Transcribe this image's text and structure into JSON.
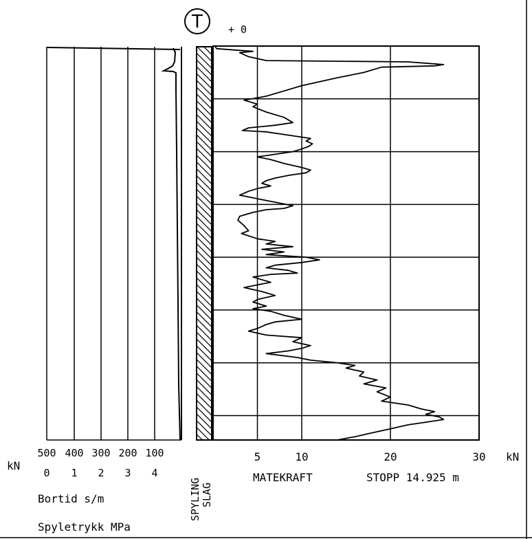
{
  "marker": {
    "symbol": "T",
    "offset": "+ 0"
  },
  "left_panel": {
    "unit": "kN",
    "kn_ticks": [
      "500",
      "400",
      "300",
      "200",
      "100"
    ],
    "mpa_ticks": [
      "0",
      "1",
      "2",
      "3",
      "4"
    ],
    "label_bortid": "Bortid s/m",
    "label_spyletrykk": "Spyletrykk MPa"
  },
  "strip": {
    "label_spyling": "SPYLING",
    "label_slag": "SLAG"
  },
  "chart_data": {
    "type": "line",
    "xlabel": "MATEKRAFT",
    "x_unit": "kN",
    "xlim": [
      0,
      30
    ],
    "x_ticks": [
      "5",
      "10",
      "20",
      "30"
    ],
    "stop_label": "STOPP 14.925 m",
    "grid": true,
    "depth_range": [
      0,
      14.925
    ],
    "series": [
      {
        "points": [
          [
            0.0,
            0.2
          ],
          [
            0.1,
            0.4
          ],
          [
            0.2,
            4.5
          ],
          [
            0.25,
            3.0
          ],
          [
            0.4,
            4.0
          ],
          [
            0.55,
            6.0
          ],
          [
            0.6,
            22.0
          ],
          [
            0.7,
            26.0
          ],
          [
            0.75,
            25.0
          ],
          [
            0.8,
            19.0
          ],
          [
            1.0,
            17.0
          ],
          [
            1.2,
            14.0
          ],
          [
            1.5,
            10.0
          ],
          [
            1.7,
            8.0
          ],
          [
            1.9,
            6.0
          ],
          [
            2.05,
            3.5
          ],
          [
            2.2,
            5.0
          ],
          [
            2.3,
            4.5
          ],
          [
            2.5,
            6.0
          ],
          [
            2.7,
            8.0
          ],
          [
            2.9,
            9.0
          ],
          [
            3.0,
            7.0
          ],
          [
            3.1,
            4.0
          ],
          [
            3.2,
            3.3
          ],
          [
            3.25,
            6.0
          ],
          [
            3.35,
            8.0
          ],
          [
            3.5,
            11.0
          ],
          [
            3.6,
            10.5
          ],
          [
            3.7,
            11.2
          ],
          [
            3.8,
            10.8
          ],
          [
            3.9,
            10.0
          ],
          [
            4.0,
            9.0
          ],
          [
            4.1,
            7.0
          ],
          [
            4.2,
            5.0
          ],
          [
            4.3,
            6.5
          ],
          [
            4.45,
            8.0
          ],
          [
            4.6,
            10.0
          ],
          [
            4.7,
            11.0
          ],
          [
            4.8,
            10.5
          ],
          [
            4.9,
            8.5
          ],
          [
            5.0,
            7.0
          ],
          [
            5.1,
            6.0
          ],
          [
            5.2,
            5.5
          ],
          [
            5.3,
            6.5
          ],
          [
            5.4,
            5.0
          ],
          [
            5.5,
            4.0
          ],
          [
            5.65,
            3.0
          ],
          [
            5.75,
            4.5
          ],
          [
            5.85,
            6.0
          ],
          [
            5.95,
            7.5
          ],
          [
            6.05,
            9.0
          ],
          [
            6.15,
            8.0
          ],
          [
            6.2,
            6.0
          ],
          [
            6.3,
            4.5
          ],
          [
            6.45,
            3.0
          ],
          [
            6.6,
            2.8
          ],
          [
            6.8,
            3.5
          ],
          [
            7.0,
            4.0
          ],
          [
            7.1,
            3.2
          ],
          [
            7.3,
            5.0
          ],
          [
            7.4,
            7.0
          ],
          [
            7.5,
            6.0
          ],
          [
            7.6,
            9.0
          ],
          [
            7.7,
            5.5
          ],
          [
            7.8,
            8.0
          ],
          [
            7.9,
            6.0
          ],
          [
            8.0,
            10.5
          ],
          [
            8.1,
            12.0
          ],
          [
            8.2,
            10.0
          ],
          [
            8.3,
            7.0
          ],
          [
            8.4,
            6.0
          ],
          [
            8.5,
            8.5
          ],
          [
            8.6,
            9.5
          ],
          [
            8.65,
            6.5
          ],
          [
            8.75,
            4.5
          ],
          [
            8.85,
            5.5
          ],
          [
            8.95,
            6.5
          ],
          [
            9.05,
            5.0
          ],
          [
            9.15,
            3.5
          ],
          [
            9.3,
            5.5
          ],
          [
            9.45,
            7.0
          ],
          [
            9.6,
            5.0
          ],
          [
            9.7,
            4.5
          ],
          [
            9.85,
            6.0
          ],
          [
            9.95,
            4.5
          ],
          [
            10.05,
            6.5
          ],
          [
            10.2,
            8.0
          ],
          [
            10.35,
            10.0
          ],
          [
            10.45,
            7.0
          ],
          [
            10.55,
            6.0
          ],
          [
            10.7,
            5.0
          ],
          [
            10.8,
            4.0
          ],
          [
            10.95,
            6.0
          ],
          [
            11.05,
            10.0
          ],
          [
            11.2,
            9.0
          ],
          [
            11.35,
            11.0
          ],
          [
            11.45,
            10.0
          ],
          [
            11.55,
            8.5
          ],
          [
            11.65,
            6.0
          ],
          [
            11.8,
            9.5
          ],
          [
            11.9,
            11.0
          ],
          [
            12.0,
            14.0
          ],
          [
            12.1,
            16.0
          ],
          [
            12.2,
            15.0
          ],
          [
            12.35,
            17.0
          ],
          [
            12.5,
            16.5
          ],
          [
            12.65,
            18.5
          ],
          [
            12.8,
            17.0
          ],
          [
            12.95,
            19.5
          ],
          [
            13.1,
            18.5
          ],
          [
            13.3,
            20.0
          ],
          [
            13.45,
            19.0
          ],
          [
            13.6,
            22.0
          ],
          [
            13.75,
            23.5
          ],
          [
            13.85,
            25.0
          ],
          [
            13.95,
            24.0
          ],
          [
            14.05,
            25.5
          ],
          [
            14.15,
            26.0
          ],
          [
            14.25,
            24.0
          ],
          [
            14.35,
            22.0
          ],
          [
            14.5,
            20.0
          ],
          [
            14.65,
            18.0
          ],
          [
            14.8,
            16.0
          ],
          [
            14.925,
            14.0
          ]
        ]
      }
    ]
  }
}
